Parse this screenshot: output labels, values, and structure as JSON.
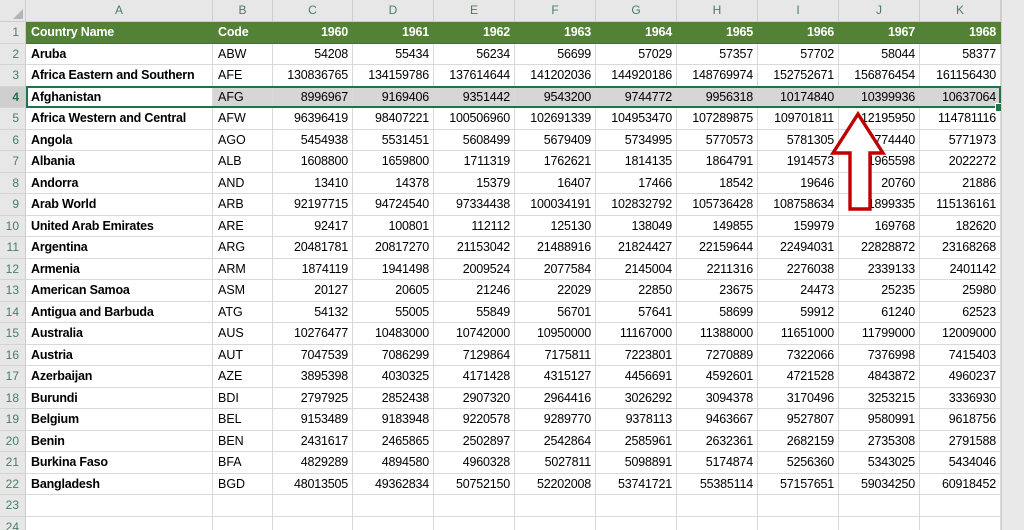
{
  "sheet": {
    "column_letters": [
      "A",
      "B",
      "C",
      "D",
      "E",
      "F",
      "G",
      "H",
      "I",
      "J",
      "K"
    ],
    "row_numbers": [
      "1",
      "2",
      "3",
      "4",
      "5",
      "6",
      "7",
      "8",
      "9",
      "10",
      "11",
      "12",
      "13",
      "14",
      "15",
      "16",
      "17",
      "18",
      "19",
      "20",
      "21",
      "22",
      "23",
      "24"
    ],
    "header_row": {
      "country": "Country Name",
      "code": "Code",
      "years": [
        "1960",
        "1961",
        "1962",
        "1963",
        "1964",
        "1965",
        "1966",
        "1967",
        "1968"
      ]
    },
    "rows": [
      {
        "country": "Aruba",
        "code": "ABW",
        "values": [
          "54208",
          "55434",
          "56234",
          "56699",
          "57029",
          "57357",
          "57702",
          "58044",
          "58377"
        ]
      },
      {
        "country": "Africa Eastern and Southern",
        "code": "AFE",
        "values": [
          "130836765",
          "134159786",
          "137614644",
          "141202036",
          "144920186",
          "148769974",
          "152752671",
          "156876454",
          "161156430"
        ]
      },
      {
        "country": "Afghanistan",
        "code": "AFG",
        "values": [
          "8996967",
          "9169406",
          "9351442",
          "9543200",
          "9744772",
          "9956318",
          "10174840",
          "10399936",
          "10637064"
        ]
      },
      {
        "country": "Africa Western and Central",
        "code": "AFW",
        "values": [
          "96396419",
          "98407221",
          "100506960",
          "102691339",
          "104953470",
          "107289875",
          "109701811",
          "112195950",
          "114781116"
        ]
      },
      {
        "country": "Angola",
        "code": "AGO",
        "values": [
          "5454938",
          "5531451",
          "5608499",
          "5679409",
          "5734995",
          "5770573",
          "5781305",
          "5774440",
          "5771973"
        ]
      },
      {
        "country": "Albania",
        "code": "ALB",
        "values": [
          "1608800",
          "1659800",
          "1711319",
          "1762621",
          "1814135",
          "1864791",
          "1914573",
          "1965598",
          "2022272"
        ]
      },
      {
        "country": "Andorra",
        "code": "AND",
        "values": [
          "13410",
          "14378",
          "15379",
          "16407",
          "17466",
          "18542",
          "19646",
          "20760",
          "21886"
        ]
      },
      {
        "country": "Arab World",
        "code": "ARB",
        "values": [
          "92197715",
          "94724540",
          "97334438",
          "100034191",
          "102832792",
          "105736428",
          "108758634",
          "111899335",
          "115136161"
        ]
      },
      {
        "country": "United Arab Emirates",
        "code": "ARE",
        "values": [
          "92417",
          "100801",
          "112112",
          "125130",
          "138049",
          "149855",
          "159979",
          "169768",
          "182620"
        ]
      },
      {
        "country": "Argentina",
        "code": "ARG",
        "values": [
          "20481781",
          "20817270",
          "21153042",
          "21488916",
          "21824427",
          "22159644",
          "22494031",
          "22828872",
          "23168268"
        ]
      },
      {
        "country": "Armenia",
        "code": "ARM",
        "values": [
          "1874119",
          "1941498",
          "2009524",
          "2077584",
          "2145004",
          "2211316",
          "2276038",
          "2339133",
          "2401142"
        ]
      },
      {
        "country": "American Samoa",
        "code": "ASM",
        "values": [
          "20127",
          "20605",
          "21246",
          "22029",
          "22850",
          "23675",
          "24473",
          "25235",
          "25980"
        ]
      },
      {
        "country": "Antigua and Barbuda",
        "code": "ATG",
        "values": [
          "54132",
          "55005",
          "55849",
          "56701",
          "57641",
          "58699",
          "59912",
          "61240",
          "62523"
        ]
      },
      {
        "country": "Australia",
        "code": "AUS",
        "values": [
          "10276477",
          "10483000",
          "10742000",
          "10950000",
          "11167000",
          "11388000",
          "11651000",
          "11799000",
          "12009000"
        ]
      },
      {
        "country": "Austria",
        "code": "AUT",
        "values": [
          "7047539",
          "7086299",
          "7129864",
          "7175811",
          "7223801",
          "7270889",
          "7322066",
          "7376998",
          "7415403"
        ]
      },
      {
        "country": "Azerbaijan",
        "code": "AZE",
        "values": [
          "3895398",
          "4030325",
          "4171428",
          "4315127",
          "4456691",
          "4592601",
          "4721528",
          "4843872",
          "4960237"
        ]
      },
      {
        "country": "Burundi",
        "code": "BDI",
        "values": [
          "2797925",
          "2852438",
          "2907320",
          "2964416",
          "3026292",
          "3094378",
          "3170496",
          "3253215",
          "3336930"
        ]
      },
      {
        "country": "Belgium",
        "code": "BEL",
        "values": [
          "9153489",
          "9183948",
          "9220578",
          "9289770",
          "9378113",
          "9463667",
          "9527807",
          "9580991",
          "9618756"
        ]
      },
      {
        "country": "Benin",
        "code": "BEN",
        "values": [
          "2431617",
          "2465865",
          "2502897",
          "2542864",
          "2585961",
          "2632361",
          "2682159",
          "2735308",
          "2791588"
        ]
      },
      {
        "country": "Burkina Faso",
        "code": "BFA",
        "values": [
          "4829289",
          "4894580",
          "4960328",
          "5027811",
          "5098891",
          "5174874",
          "5256360",
          "5343025",
          "5434046"
        ]
      },
      {
        "country": "Bangladesh",
        "code": "BGD",
        "values": [
          "48013505",
          "49362834",
          "50752150",
          "52202008",
          "53741721",
          "55385114",
          "57157651",
          "59034250",
          "60918452"
        ]
      }
    ],
    "selected_row_number": "4",
    "empty_row_numbers": [
      "23",
      "24"
    ],
    "colors": {
      "header_green": "#538135",
      "header_text": "#ffffff",
      "selection_border_green": "#217346",
      "selection_fill_gray": "#d6d6d6",
      "arrow_red": "#c00000",
      "gridline": "#d9d9d9"
    },
    "annotation": {
      "shape": "up-arrow"
    }
  }
}
